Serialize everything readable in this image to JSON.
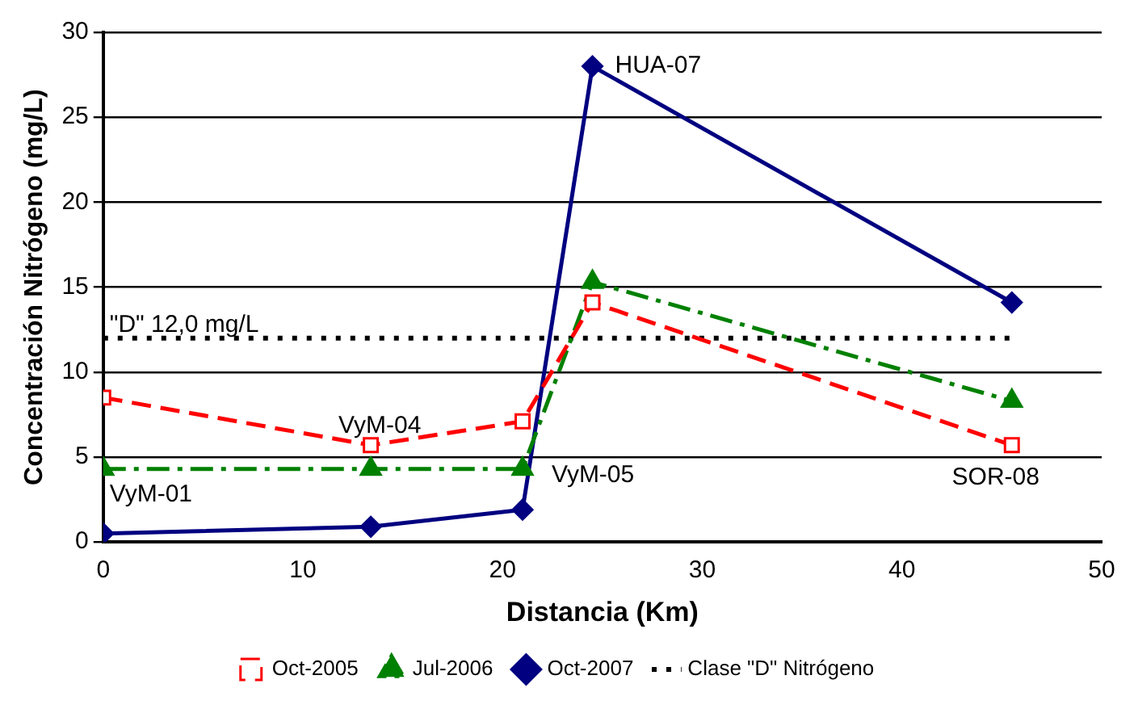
{
  "chart_data": {
    "type": "line",
    "xlabel": "Distancia (Km)",
    "ylabel": "Concentración Nitrógeno (mg/L)",
    "xlim": [
      0,
      50
    ],
    "xticks": [
      0,
      10,
      20,
      30,
      40,
      50
    ],
    "ylim": [
      0,
      30
    ],
    "yticks": [
      0,
      5,
      10,
      15,
      20,
      25,
      30
    ],
    "grid": "y",
    "legend": "bottom",
    "x": [
      0,
      13.4,
      21,
      24.5,
      45.5
    ],
    "series": [
      {
        "name": "Oct-2005",
        "color": "#ff0000",
        "values": [
          8.5,
          5.7,
          7.1,
          14.1,
          5.7
        ],
        "marker": "square",
        "line_style": "dashed"
      },
      {
        "name": "Jul-2006",
        "color": "#008000",
        "values": [
          4.3,
          4.3,
          4.3,
          15.3,
          8.3
        ],
        "marker": "triangle",
        "line_style": "dashdot"
      },
      {
        "name": "Oct-2007",
        "color": "#000080",
        "values": [
          0.5,
          0.9,
          1.9,
          28,
          14.1
        ],
        "marker": "diamond",
        "line_style": "solid"
      },
      {
        "name": "Clase \"D\" Nitrógeno",
        "color": "#000000",
        "x": [
          0,
          45.5
        ],
        "values": [
          12,
          12
        ],
        "marker": "none",
        "line_style": "dotted"
      }
    ],
    "annotations": [
      {
        "text": "\"D\" 12,0 mg/L",
        "x": 0,
        "y": 12
      },
      {
        "text": "HUA-07",
        "x": 24.5,
        "y": 28
      },
      {
        "text": "VyM-01",
        "x": 0,
        "y": 4.3
      },
      {
        "text": "VyM-04",
        "x": 13.4,
        "y": 5.7
      },
      {
        "text": "VyM-05",
        "x": 21,
        "y": 4.3
      },
      {
        "text": "SOR-08",
        "x": 45.5,
        "y": 5.7
      }
    ]
  }
}
